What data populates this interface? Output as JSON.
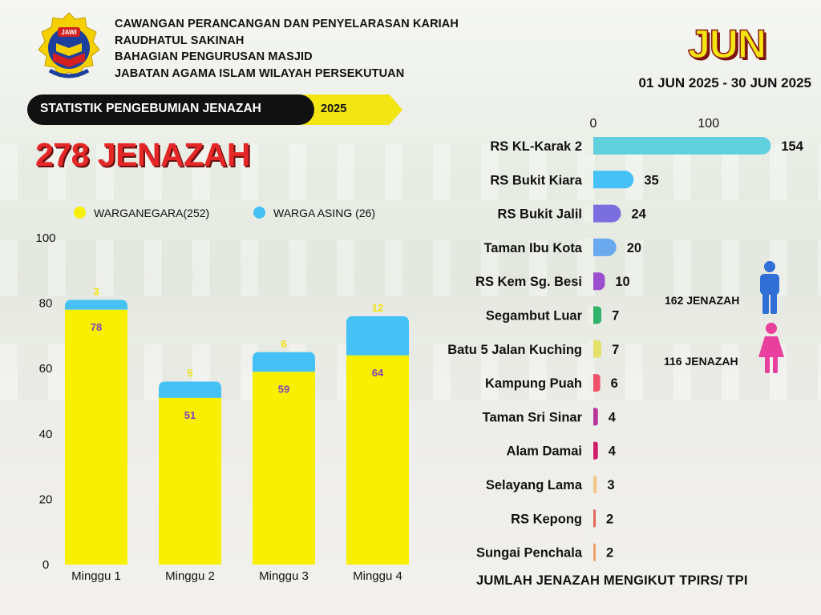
{
  "header": {
    "lines": [
      "CAWANGAN PERANCANGAN DAN PENYELARASAN KARIAH",
      "RAUDHATUL SAKINAH",
      "BAHAGIAN PENGURUSAN MASJID",
      "JABATAN AGAMA ISLAM WILAYAH PERSEKUTUAN"
    ],
    "logo_text": "JAWI"
  },
  "period": {
    "month": "JUN",
    "range": "01 JUN 2025 - 30 JUN 2025"
  },
  "banner": {
    "title": "STATISTIK PENGEBUMIAN JENAZAH",
    "year": "2025"
  },
  "total": "278 JENAZAH",
  "gender": {
    "male": "162 JENAZAH",
    "female": "116 JENAZAH",
    "male_color": "#2f6fd6",
    "female_color": "#e8409c"
  },
  "footer": "JUMLAH JENAZAH MENGIKUT TPIRS/ TPI",
  "chart_data": [
    {
      "type": "bar",
      "stacked": true,
      "categories": [
        "Minggu 1",
        "Minggu 2",
        "Minggu 3",
        "Minggu 4"
      ],
      "series": [
        {
          "name": "WARGANEGARA(252)",
          "values": [
            78,
            51,
            59,
            64
          ],
          "color": "#f7f000"
        },
        {
          "name": "WARGA ASING (26)",
          "values": [
            3,
            5,
            6,
            12
          ],
          "color": "#45c1f5"
        }
      ],
      "ylim": [
        0,
        100
      ],
      "yticks": [
        0,
        20,
        40,
        60,
        80,
        100
      ],
      "grid": false,
      "legend": "top"
    },
    {
      "type": "bar",
      "orientation": "horizontal",
      "categories": [
        "RS KL-Karak 2",
        "RS Bukit Kiara",
        "RS Bukit Jalil",
        "Taman Ibu Kota",
        "RS Kem Sg. Besi",
        "Segambut Luar",
        "Batu 5 Jalan Kuching",
        "Kampung Puah",
        "Taman Sri Sinar",
        "Alam Damai",
        "Selayang Lama",
        "RS Kepong",
        "Sungai Penchala"
      ],
      "values": [
        154,
        35,
        24,
        20,
        10,
        7,
        7,
        6,
        4,
        4,
        3,
        2,
        2
      ],
      "colors": [
        "#5fd0dc",
        "#45c1f5",
        "#7b6fe0",
        "#6aa9ee",
        "#9b4fd0",
        "#2fb36a",
        "#e4e06a",
        "#f0506a",
        "#b8369c",
        "#d01f6a",
        "#f2c98a",
        "#e06a5a",
        "#f0a070"
      ],
      "xticks": [
        0,
        100
      ],
      "xlim": [
        0,
        160
      ]
    }
  ]
}
